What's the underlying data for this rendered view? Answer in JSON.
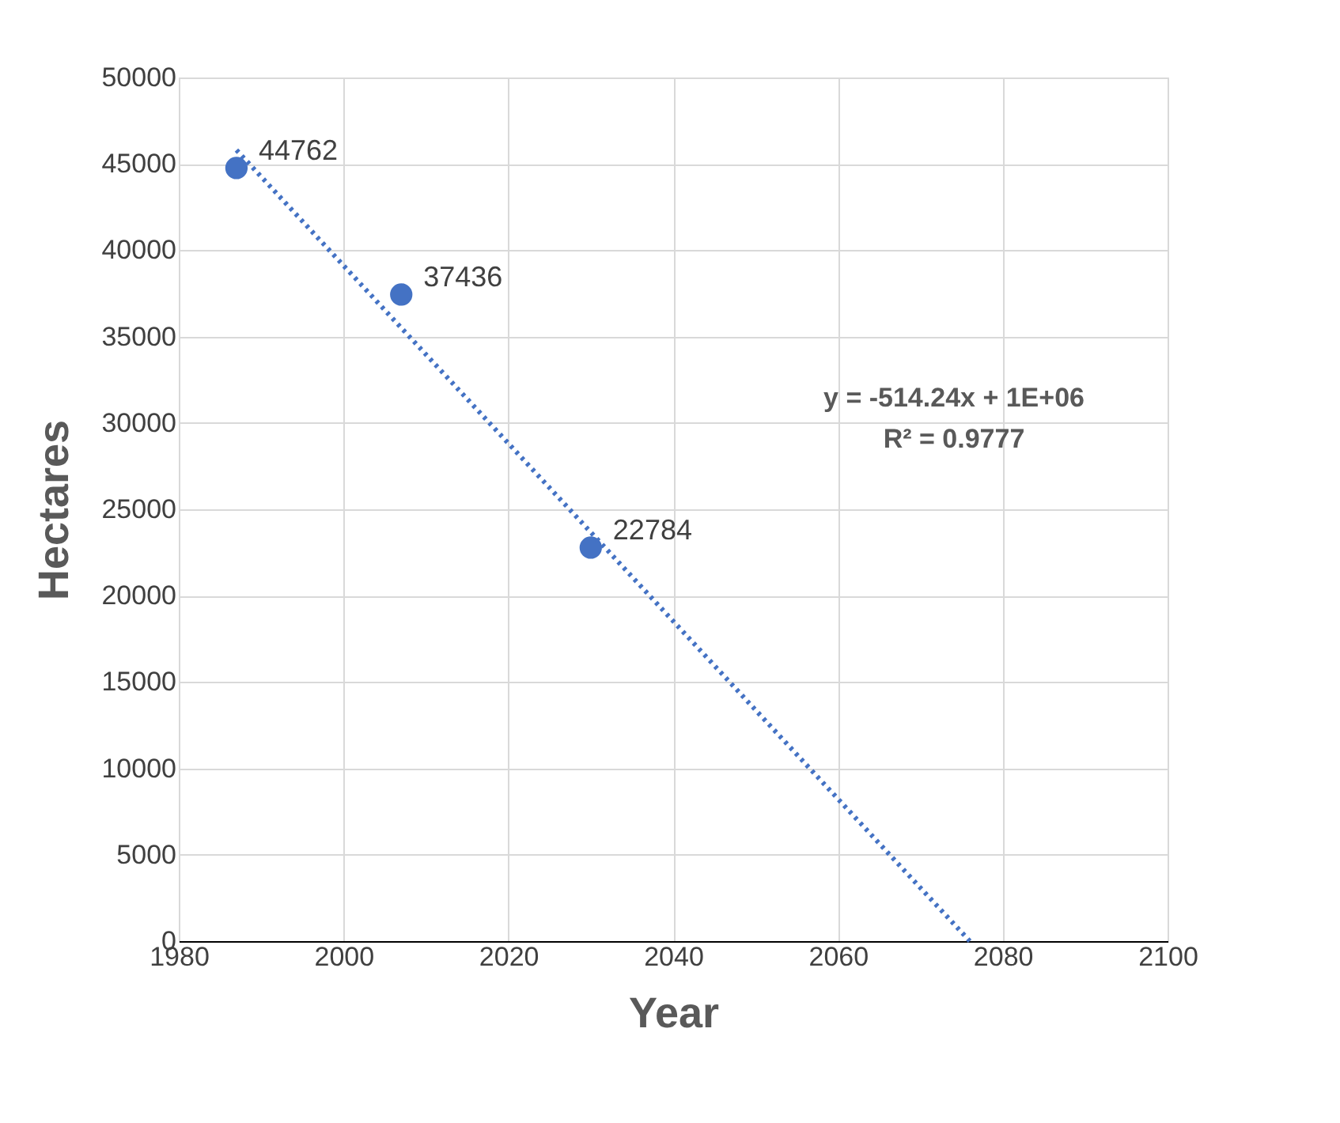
{
  "chart_data": {
    "type": "scatter",
    "xlabel": "Year",
    "ylabel": "Hectares",
    "series": [
      {
        "type": "scatter",
        "x": [
          1987,
          2007,
          2030
        ],
        "values": [
          44762,
          37436,
          22784
        ],
        "color": "#4472c4",
        "marker": "circle",
        "value_labels": [
          "44762",
          "37436",
          "22784"
        ]
      },
      {
        "type": "line",
        "x": [
          1987,
          2076
        ],
        "values": [
          45800,
          0
        ],
        "color": "#4472c4",
        "marker": "none",
        "line_style": "dotted"
      }
    ],
    "annotations": [
      "y = -514.24x + 1E+06",
      "R² = 0.9777"
    ],
    "xlim": [
      1980,
      2100
    ],
    "xticks": [
      1980,
      2000,
      2020,
      2040,
      2060,
      2080,
      2100
    ],
    "ylim": [
      0,
      50000
    ],
    "yticks": [
      0,
      5000,
      10000,
      15000,
      20000,
      25000,
      30000,
      35000,
      40000,
      45000,
      50000
    ],
    "grid": true,
    "legend": false
  }
}
